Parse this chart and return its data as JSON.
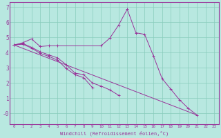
{
  "xlabel": "Windchill (Refroidissement éolien,°C)",
  "bg_color": "#b8e8e0",
  "line_color": "#993399",
  "grid_color": "#88ccbb",
  "ylim": [
    -0.7,
    7.3
  ],
  "xlim": [
    -0.5,
    23.5
  ],
  "yticks": [
    0,
    1,
    2,
    3,
    4,
    5,
    6,
    7
  ],
  "ytick_labels": [
    "-0",
    "1",
    "2",
    "3",
    "4",
    "5",
    "6",
    "7"
  ],
  "xticks": [
    0,
    1,
    2,
    3,
    4,
    5,
    6,
    7,
    8,
    9,
    10,
    11,
    12,
    13,
    14,
    15,
    16,
    17,
    18,
    19,
    20,
    21,
    22,
    23
  ],
  "series": [
    {
      "x": [
        0,
        1,
        2,
        3,
        4,
        5,
        10,
        11,
        12,
        13,
        14,
        15,
        16,
        17,
        18,
        19,
        20,
        21
      ],
      "y": [
        4.5,
        4.65,
        4.9,
        4.4,
        4.45,
        4.45,
        4.45,
        4.95,
        5.8,
        6.85,
        5.3,
        5.2,
        3.8,
        2.3,
        1.6,
        0.9,
        0.35,
        -0.1
      ]
    },
    {
      "x": [
        0,
        1,
        2,
        3,
        4,
        5,
        6,
        7,
        8,
        9,
        10,
        11,
        12
      ],
      "y": [
        4.5,
        4.6,
        4.35,
        4.05,
        3.85,
        3.65,
        3.2,
        2.65,
        2.55,
        2.0,
        1.8,
        1.55,
        1.2
      ]
    },
    {
      "x": [
        0,
        1,
        2,
        3,
        4,
        5,
        6,
        7,
        8,
        9
      ],
      "y": [
        4.5,
        4.55,
        4.3,
        3.95,
        3.75,
        3.5,
        2.95,
        2.55,
        2.35,
        1.7
      ]
    },
    {
      "x": [
        0,
        21
      ],
      "y": [
        4.5,
        -0.1
      ]
    }
  ],
  "figsize": [
    3.2,
    2.0
  ],
  "dpi": 100
}
